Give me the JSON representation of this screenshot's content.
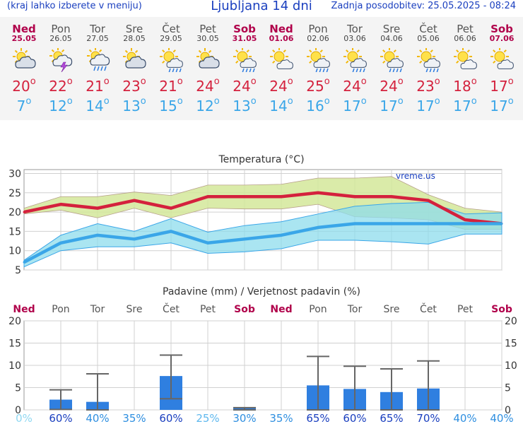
{
  "header": {
    "menu_link": "(kraj lahko izberete v meniju)",
    "title": "Ljubljana 14 dni",
    "last_update": "Zadnja posodobitev: 25.05.2025 - 08:24"
  },
  "colors": {
    "max_temp": "#d4213d",
    "min_temp": "#3aa6e8",
    "weekend": "#b0004a",
    "band_max": "#d3e89a",
    "band_min": "#8edcec",
    "bars": "#2f7fe0"
  },
  "days": [
    {
      "name": "Ned",
      "date": "25.05",
      "weekend": true,
      "icon": "partly-cloudy-icon",
      "tmax": "20",
      "tmin": "7"
    },
    {
      "name": "Pon",
      "date": "26.05",
      "weekend": false,
      "icon": "thunderstorm-icon",
      "tmax": "22",
      "tmin": "12"
    },
    {
      "name": "Tor",
      "date": "27.05",
      "weekend": false,
      "icon": "cloud-rain-icon",
      "tmax": "21",
      "tmin": "14"
    },
    {
      "name": "Sre",
      "date": "28.05",
      "weekend": false,
      "icon": "partly-cloudy-icon",
      "tmax": "23",
      "tmin": "13"
    },
    {
      "name": "Čet",
      "date": "29.05",
      "weekend": false,
      "icon": "sun-rain-icon",
      "tmax": "21",
      "tmin": "15"
    },
    {
      "name": "Pet",
      "date": "30.05",
      "weekend": false,
      "icon": "partly-cloudy-icon",
      "tmax": "24",
      "tmin": "12"
    },
    {
      "name": "Sob",
      "date": "31.05",
      "weekend": true,
      "icon": "sun-rain-icon",
      "tmax": "24",
      "tmin": "13"
    },
    {
      "name": "Ned",
      "date": "01.06",
      "weekend": true,
      "icon": "sun-cloud-icon",
      "tmax": "24",
      "tmin": "14"
    },
    {
      "name": "Pon",
      "date": "02.06",
      "weekend": false,
      "icon": "sun-rain-icon",
      "tmax": "25",
      "tmin": "16"
    },
    {
      "name": "Tor",
      "date": "03.06",
      "weekend": false,
      "icon": "sun-rain-icon",
      "tmax": "24",
      "tmin": "17"
    },
    {
      "name": "Sre",
      "date": "04.06",
      "weekend": false,
      "icon": "sun-rain-icon",
      "tmax": "24",
      "tmin": "17"
    },
    {
      "name": "Čet",
      "date": "05.06",
      "weekend": false,
      "icon": "sun-rain-icon",
      "tmax": "23",
      "tmin": "17"
    },
    {
      "name": "Pet",
      "date": "06.06",
      "weekend": false,
      "icon": "sun-cloud-icon",
      "tmax": "18",
      "tmin": "17"
    },
    {
      "name": "Sob",
      "date": "07.06",
      "weekend": true,
      "icon": "sun-cloud-icon",
      "tmax": "17",
      "tmin": "17"
    }
  ],
  "temp_chart": {
    "title": "Temperatura (°C)",
    "watermark": "vreme.us"
  },
  "precip_chart": {
    "title": "Padavine (mm) / Verjetnost padavin (%)"
  },
  "chart_data": [
    {
      "type": "line",
      "title": "Temperatura (°C)",
      "x": [
        "Ned 25.05",
        "Pon 26.05",
        "Tor 27.05",
        "Sre 28.05",
        "Čet 29.05",
        "Pet 30.05",
        "Sob 31.05",
        "Ned 01.06",
        "Pon 02.06",
        "Tor 03.06",
        "Sre 04.06",
        "Čet 05.06",
        "Pet 06.06",
        "Sob 07.06"
      ],
      "ylim": [
        5,
        31
      ],
      "yticks": [
        5,
        10,
        15,
        20,
        25,
        30
      ],
      "grid": true,
      "series": [
        {
          "values": [
            20,
            22,
            21,
            23,
            21,
            24,
            24,
            24,
            25,
            24,
            24,
            23,
            18,
            17
          ]
        },
        {
          "values": [
            7,
            12,
            14,
            13,
            15,
            12,
            13,
            14,
            16,
            17,
            17,
            17,
            17,
            17
          ]
        }
      ],
      "max_band_upper": [
        21,
        24,
        24,
        25.2,
        24.3,
        27,
        27,
        27.2,
        28.8,
        28.8,
        29.2,
        24.5,
        21,
        20
      ],
      "max_band_lower": [
        19.5,
        20.5,
        18.5,
        21,
        18.5,
        21,
        20.8,
        20.8,
        22,
        18.8,
        18.5,
        18,
        15.5,
        15.5
      ],
      "min_band_upper": [
        7.5,
        14,
        17,
        15,
        18.3,
        14.8,
        16.5,
        17.5,
        19.5,
        21.5,
        22.2,
        22.5,
        19.5,
        19.8
      ],
      "min_band_lower": [
        5.8,
        10,
        11,
        11,
        12,
        9.3,
        9.7,
        10.5,
        12.7,
        12.7,
        12.3,
        11.7,
        14.3,
        14.3
      ]
    },
    {
      "type": "bar",
      "title": "Padavine (mm) / Verjetnost padavin (%)",
      "categories": [
        "Ned",
        "Pon",
        "Tor",
        "Sre",
        "Čet",
        "Pet",
        "Sob",
        "Ned",
        "Pon",
        "Tor",
        "Sre",
        "Čet",
        "Pet",
        "Sob"
      ],
      "values": [
        0,
        2.3,
        1.8,
        0,
        7.6,
        0,
        0.4,
        0,
        5.5,
        4.7,
        4,
        4.8,
        0,
        0
      ],
      "error_high": [
        null,
        4.5,
        8.1,
        null,
        12.3,
        null,
        0.5,
        null,
        12,
        9.8,
        9.2,
        11,
        null,
        null
      ],
      "error_low": [
        null,
        0.1,
        0,
        null,
        2.5,
        null,
        0,
        null,
        0,
        0,
        0,
        0,
        null,
        null
      ],
      "probability": [
        "0%",
        "60%",
        "40%",
        "35%",
        "60%",
        "25%",
        "30%",
        "35%",
        "65%",
        "60%",
        "65%",
        "70%",
        "40%",
        "40%"
      ],
      "ylim": [
        0,
        20
      ],
      "yticks": [
        0,
        5,
        10,
        15,
        20
      ]
    }
  ]
}
